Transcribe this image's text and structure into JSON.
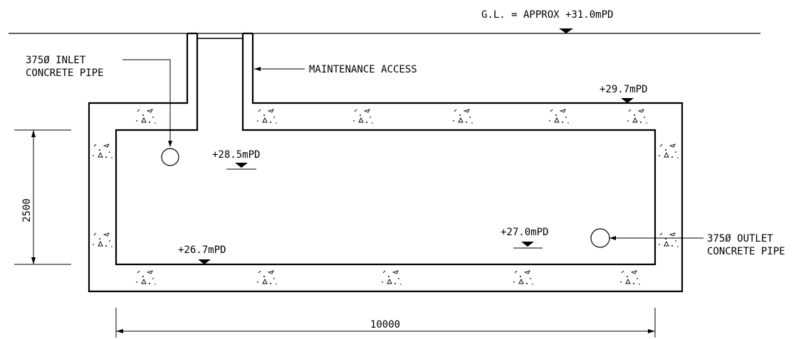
{
  "labels": {
    "ground_level": "G.L. = APPROX +31.0mPD",
    "maintenance_access": "MAINTENANCE ACCESS",
    "inlet_line1": "375Ø INLET",
    "inlet_line2": "CONCRETE PIPE",
    "outlet_line1": "375Ø OUTLET",
    "outlet_line2": "CONCRETE PIPE",
    "level_top_slab": "+29.7mPD",
    "level_inlet": "+28.5mPD",
    "level_outlet": "+27.0mPD",
    "level_bottom": "+26.7mPD",
    "dim_height": "2500",
    "dim_width": "10000"
  }
}
